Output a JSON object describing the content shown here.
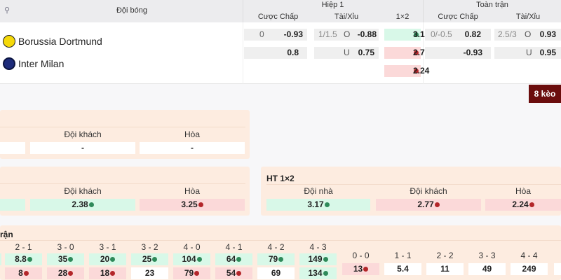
{
  "header": {
    "team_col": "Đội bóng",
    "half1": "Hiệp 1",
    "full": "Toàn trận",
    "handicap": "Cược Chấp",
    "over_under": "Tài/Xỉu",
    "one_x_two": "1×2"
  },
  "teams": [
    {
      "name": "Borussia Dortmund",
      "logo": "bvb-logo"
    },
    {
      "name": "Inter Milan",
      "logo": "inter-logo"
    }
  ],
  "half1": {
    "handicap": [
      {
        "line": "0",
        "odds": "-0.93"
      },
      {
        "line": "",
        "odds": "0.8"
      }
    ],
    "over_under": [
      {
        "line": "1/1.5",
        "side": "O",
        "odds": "-0.88"
      },
      {
        "line": "",
        "side": "U",
        "odds": "0.75"
      }
    ],
    "one_x_two": [
      {
        "odds": "3.17",
        "trend": "up"
      },
      {
        "odds": "2.77",
        "trend": "down"
      },
      {
        "odds": "2.24",
        "trend": "down"
      }
    ]
  },
  "full": {
    "handicap": [
      {
        "line": "0/-0.5",
        "odds": "0.82"
      },
      {
        "line": "",
        "odds": "-0.93"
      }
    ],
    "over_under": [
      {
        "line": "2.5/3",
        "side": "O",
        "odds": "0.93"
      },
      {
        "line": "",
        "side": "U",
        "odds": "0.95"
      }
    ]
  },
  "more_button": "8 kèo",
  "panel1": {
    "labels": [
      "Đội khách",
      "Hòa"
    ],
    "values": [
      "-",
      "-"
    ]
  },
  "panel2": {
    "labels": [
      "Đội khách",
      "Hòa"
    ],
    "values": [
      {
        "v": "2.38",
        "t": "up"
      },
      {
        "v": "3.25",
        "t": "down"
      }
    ]
  },
  "ht": {
    "title": "HT 1×2",
    "labels": [
      "Đội nhà",
      "Đội khách",
      "Hòa"
    ],
    "values": [
      {
        "v": "3.17",
        "t": "up"
      },
      {
        "v": "2.77",
        "t": "down"
      },
      {
        "v": "2.24",
        "t": "down"
      }
    ]
  },
  "correct_score": {
    "title": "rận",
    "scores": [
      "2 - 1",
      "3 - 0",
      "3 - 1",
      "3 - 2",
      "4 - 0",
      "4 - 1",
      "4 - 2",
      "4 - 3"
    ],
    "row1": [
      {
        "v": "8.8",
        "t": "up"
      },
      {
        "v": "35",
        "t": "up"
      },
      {
        "v": "20",
        "t": "up"
      },
      {
        "v": "25",
        "t": "up"
      },
      {
        "v": "104",
        "t": "up"
      },
      {
        "v": "64",
        "t": "up"
      },
      {
        "v": "79",
        "t": "up"
      },
      {
        "v": "149",
        "t": "up"
      }
    ],
    "row2": [
      {
        "v": "8",
        "t": "down"
      },
      {
        "v": "28",
        "t": "down"
      },
      {
        "v": "18",
        "t": "down"
      },
      {
        "v": "23",
        "t": ""
      },
      {
        "v": "79",
        "t": "down"
      },
      {
        "v": "54",
        "t": "down"
      },
      {
        "v": "69",
        "t": ""
      },
      {
        "v": "134",
        "t": "up"
      }
    ],
    "draws": [
      "0 - 0",
      "1 - 1",
      "2 - 2",
      "3 - 3",
      "4 - 4"
    ],
    "draw_values": [
      {
        "v": "13",
        "t": "down"
      },
      {
        "v": "5.4",
        "t": ""
      },
      {
        "v": "11",
        "t": ""
      },
      {
        "v": "49",
        "t": ""
      },
      {
        "v": "249",
        "t": ""
      }
    ]
  },
  "colors": {
    "up": "#d8f8e8",
    "down": "#fbd9d9",
    "panel": "#fdece0",
    "button": "#6b0d0d"
  }
}
